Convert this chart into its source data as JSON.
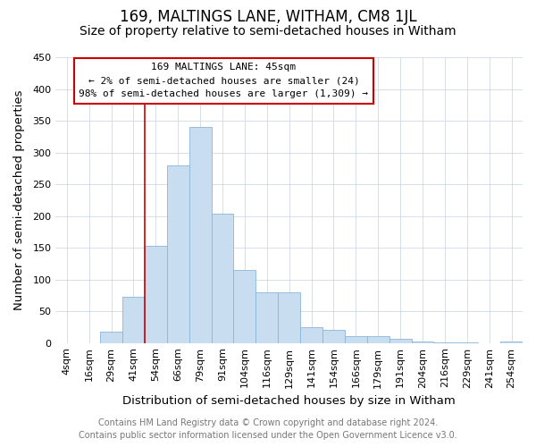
{
  "title": "169, MALTINGS LANE, WITHAM, CM8 1JL",
  "subtitle": "Size of property relative to semi-detached houses in Witham",
  "xlabel": "Distribution of semi-detached houses by size in Witham",
  "ylabel": "Number of semi-detached properties",
  "bar_labels": [
    "4sqm",
    "16sqm",
    "29sqm",
    "41sqm",
    "54sqm",
    "66sqm",
    "79sqm",
    "91sqm",
    "104sqm",
    "116sqm",
    "129sqm",
    "141sqm",
    "154sqm",
    "166sqm",
    "179sqm",
    "191sqm",
    "204sqm",
    "216sqm",
    "229sqm",
    "241sqm",
    "254sqm"
  ],
  "bar_values": [
    0,
    0,
    18,
    73,
    153,
    280,
    340,
    204,
    115,
    80,
    80,
    25,
    20,
    11,
    11,
    6,
    2,
    1,
    1,
    0,
    3
  ],
  "bar_color": "#c9ddf0",
  "bar_edge_color": "#8ab4d8",
  "property_line_label": "169 MALTINGS LANE: 45sqm",
  "annotation_line1": "← 2% of semi-detached houses are smaller (24)",
  "annotation_line2": "98% of semi-detached houses are larger (1,309) →",
  "annotation_box_color": "#ffffff",
  "annotation_box_edge_color": "#cc0000",
  "vline_color": "#cc0000",
  "ylim": [
    0,
    450
  ],
  "yticks": [
    0,
    50,
    100,
    150,
    200,
    250,
    300,
    350,
    400,
    450
  ],
  "footer_line1": "Contains HM Land Registry data © Crown copyright and database right 2024.",
  "footer_line2": "Contains public sector information licensed under the Open Government Licence v3.0.",
  "background_color": "#ffffff",
  "plot_background": "#ffffff",
  "title_fontsize": 12,
  "subtitle_fontsize": 10,
  "axis_label_fontsize": 9.5,
  "tick_fontsize": 8,
  "footer_fontsize": 7,
  "annotation_fontsize": 8,
  "vline_x_index": 3.5
}
